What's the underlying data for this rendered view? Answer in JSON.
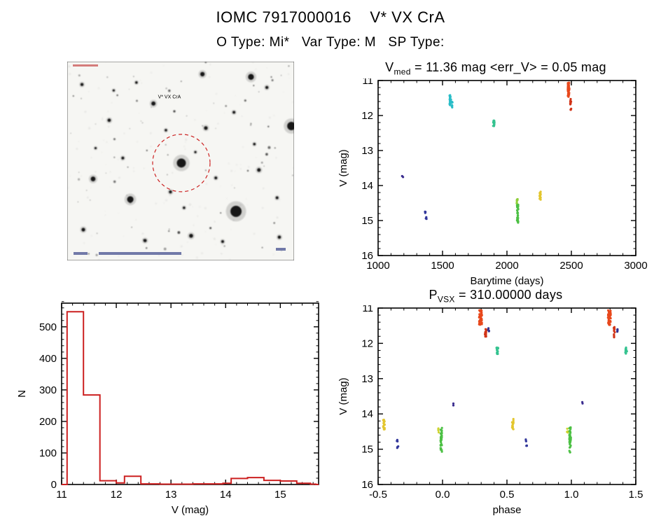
{
  "page": {
    "title": "IOMC 7917000016    V* VX CrA",
    "subtitle": "O Type: Mi*   Var Type: M   SP Type:"
  },
  "finder_image": {
    "annotation": "V* VX CrA",
    "circle_color": "#cc2222",
    "background": "#f6f6f3"
  },
  "chart_data": [
    {
      "id": "lightcurve",
      "type": "scatter",
      "title_parts": [
        "V",
        "med",
        " = 11.36 mag <err_V> = 0.05 mag"
      ],
      "xlabel": "Barytime (days)",
      "ylabel": "V (mag)",
      "xlim": [
        1000,
        3000
      ],
      "ylim": [
        11,
        16
      ],
      "y_down": true,
      "xtick_vals": [
        1000,
        1500,
        2000,
        2500,
        3000
      ],
      "xtick_labels": [
        "1000",
        "1500",
        "2000",
        "2500",
        "3000"
      ],
      "ytick_vals": [
        11,
        12,
        13,
        14,
        15,
        16
      ],
      "ytick_labels": [
        "11",
        "12",
        "13",
        "14",
        "15",
        "16"
      ],
      "x_minor": 100,
      "y_minor": 0.2,
      "clusters": [
        {
          "x": 1190,
          "xs": 8,
          "v1": 13.66,
          "v2": 13.76,
          "n": 2,
          "c": "#3b2d8f"
        },
        {
          "x": 1365,
          "xs": 8,
          "v1": 14.72,
          "v2": 14.8,
          "n": 3,
          "c": "#32379b"
        },
        {
          "x": 1373,
          "xs": 8,
          "v1": 14.88,
          "v2": 14.98,
          "n": 3,
          "c": "#32379b"
        },
        {
          "x": 1560,
          "xs": 12,
          "v1": 11.42,
          "v2": 11.72,
          "n": 26,
          "c": "#2abdc8"
        },
        {
          "x": 1574,
          "xs": 7,
          "v1": 11.6,
          "v2": 11.78,
          "n": 8,
          "c": "#2abdc8"
        },
        {
          "x": 1898,
          "xs": 10,
          "v1": 12.12,
          "v2": 12.3,
          "n": 18,
          "c": "#35c390"
        },
        {
          "x": 2080,
          "xs": 9,
          "v1": 14.38,
          "v2": 14.62,
          "n": 10,
          "c": "#8fcf3a"
        },
        {
          "x": 2083,
          "xs": 10,
          "v1": 14.55,
          "v2": 15.12,
          "n": 30,
          "c": "#4cc044"
        },
        {
          "x": 2258,
          "xs": 10,
          "v1": 14.14,
          "v2": 14.44,
          "n": 18,
          "c": "#e3c62e"
        },
        {
          "x": 2478,
          "xs": 12,
          "v1": 11.06,
          "v2": 11.48,
          "n": 42,
          "c": "#e8481c"
        },
        {
          "x": 2495,
          "xs": 8,
          "v1": 11.52,
          "v2": 11.84,
          "n": 12,
          "c": "#d13418"
        }
      ]
    },
    {
      "id": "histogram",
      "type": "bar",
      "xlabel": "V (mag)",
      "ylabel": "N",
      "xlim": [
        11,
        15.7
      ],
      "ylim": [
        0,
        575
      ],
      "y_down": false,
      "xtick_vals": [
        11,
        12,
        13,
        14,
        15
      ],
      "xtick_labels": [
        "11",
        "12",
        "13",
        "14",
        "15"
      ],
      "ytick_vals": [
        0,
        100,
        200,
        300,
        400,
        500
      ],
      "ytick_labels": [
        "0",
        "100",
        "200",
        "300",
        "400",
        "500"
      ],
      "x_minor": 0.2,
      "y_minor": 20,
      "bar_color": "#cc2020",
      "steps": [
        [
          11.0,
          0
        ],
        [
          11.1,
          548
        ],
        [
          11.4,
          284
        ],
        [
          11.7,
          12
        ],
        [
          12.0,
          5
        ],
        [
          12.15,
          26
        ],
        [
          12.45,
          2
        ],
        [
          12.8,
          1
        ],
        [
          13.1,
          1
        ],
        [
          13.4,
          2
        ],
        [
          13.7,
          2
        ],
        [
          13.95,
          4
        ],
        [
          14.1,
          19
        ],
        [
          14.4,
          22
        ],
        [
          14.7,
          13
        ],
        [
          15.0,
          11
        ],
        [
          15.3,
          4
        ],
        [
          15.55,
          1
        ],
        [
          15.65,
          0
        ]
      ]
    },
    {
      "id": "phase",
      "type": "scatter",
      "title_parts": [
        "P",
        "VSX",
        " = 310.00000 days"
      ],
      "xlabel": "phase",
      "ylabel": "V (mag)",
      "xlim": [
        -0.5,
        1.5
      ],
      "ylim": [
        11,
        16
      ],
      "y_down": true,
      "xtick_vals": [
        -0.5,
        0,
        0.5,
        1,
        1.5
      ],
      "xtick_labels": [
        "-0.5",
        "0.0",
        "0.5",
        "1.0",
        "1.5"
      ],
      "ytick_vals": [
        11,
        12,
        13,
        14,
        15,
        16
      ],
      "ytick_labels": [
        "11",
        "12",
        "13",
        "14",
        "15",
        "16"
      ],
      "x_minor": 0.1,
      "y_minor": 0.2,
      "clusters": [
        {
          "x": -0.455,
          "xs": 0.012,
          "v1": 14.14,
          "v2": 14.44,
          "n": 18,
          "c": "#e3c62e"
        },
        {
          "x": 0.545,
          "xs": 0.012,
          "v1": 14.14,
          "v2": 14.44,
          "n": 18,
          "c": "#e3c62e"
        },
        {
          "x": -0.352,
          "xs": 0.008,
          "v1": 14.72,
          "v2": 14.8,
          "n": 3,
          "c": "#32379b"
        },
        {
          "x": -0.348,
          "xs": 0.008,
          "v1": 14.88,
          "v2": 14.98,
          "n": 3,
          "c": "#32379b"
        },
        {
          "x": 0.648,
          "xs": 0.008,
          "v1": 14.72,
          "v2": 14.8,
          "n": 3,
          "c": "#32379b"
        },
        {
          "x": 0.652,
          "xs": 0.008,
          "v1": 14.88,
          "v2": 14.98,
          "n": 3,
          "c": "#32379b"
        },
        {
          "x": -0.03,
          "xs": 0.008,
          "v1": 14.4,
          "v2": 14.54,
          "n": 4,
          "c": "#cdd32e"
        },
        {
          "x": 0.97,
          "xs": 0.008,
          "v1": 14.4,
          "v2": 14.54,
          "n": 4,
          "c": "#cdd32e"
        },
        {
          "x": -0.01,
          "xs": 0.012,
          "v1": 14.38,
          "v2": 15.12,
          "n": 36,
          "c": "#4cc044"
        },
        {
          "x": 0.99,
          "xs": 0.012,
          "v1": 14.38,
          "v2": 15.12,
          "n": 36,
          "c": "#4cc044"
        },
        {
          "x": 0.085,
          "xs": 0.008,
          "v1": 13.66,
          "v2": 13.76,
          "n": 2,
          "c": "#3b2d8f"
        },
        {
          "x": 1.085,
          "xs": 0.008,
          "v1": 13.66,
          "v2": 13.76,
          "n": 2,
          "c": "#3b2d8f"
        },
        {
          "x": 0.295,
          "xs": 0.022,
          "v1": 11.06,
          "v2": 11.48,
          "n": 42,
          "c": "#e8481c"
        },
        {
          "x": 1.295,
          "xs": 0.022,
          "v1": 11.06,
          "v2": 11.48,
          "n": 42,
          "c": "#e8481c"
        },
        {
          "x": 0.335,
          "xs": 0.012,
          "v1": 11.52,
          "v2": 11.84,
          "n": 12,
          "c": "#d13418"
        },
        {
          "x": 1.335,
          "xs": 0.012,
          "v1": 11.52,
          "v2": 11.84,
          "n": 12,
          "c": "#d13418"
        },
        {
          "x": 0.358,
          "xs": 0.008,
          "v1": 11.48,
          "v2": 11.72,
          "n": 4,
          "c": "#33318f"
        },
        {
          "x": 1.358,
          "xs": 0.008,
          "v1": 11.48,
          "v2": 11.72,
          "n": 4,
          "c": "#33318f"
        },
        {
          "x": 0.425,
          "xs": 0.012,
          "v1": 12.12,
          "v2": 12.3,
          "n": 18,
          "c": "#35c390"
        },
        {
          "x": 1.425,
          "xs": 0.012,
          "v1": 12.12,
          "v2": 12.3,
          "n": 18,
          "c": "#35c390"
        }
      ]
    }
  ]
}
